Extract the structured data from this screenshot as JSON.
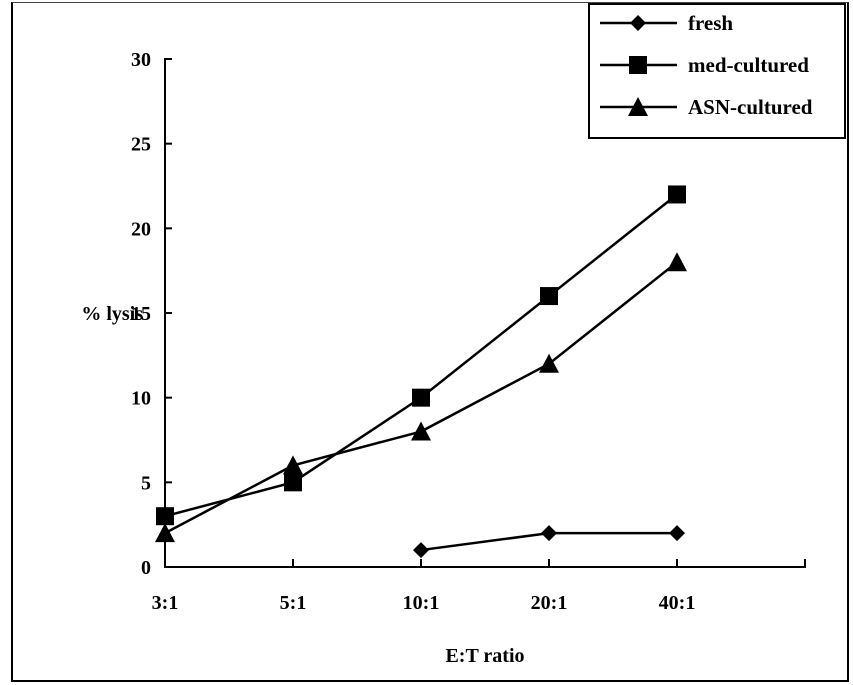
{
  "chart_data": {
    "type": "line",
    "categories": [
      "3:1",
      "5:1",
      "10:1",
      "20:1",
      "40:1"
    ],
    "series": [
      {
        "name": "fresh",
        "marker": "diamond",
        "values": [
          null,
          null,
          1,
          2,
          2
        ]
      },
      {
        "name": "med-cultured",
        "marker": "square",
        "values": [
          3,
          5,
          10,
          16,
          22
        ]
      },
      {
        "name": "ASN-cultured",
        "marker": "triangle",
        "values": [
          2,
          6,
          8,
          12,
          18
        ]
      }
    ],
    "title": "",
    "xlabel": "E:T ratio",
    "ylabel": "% lysis",
    "ylim": [
      0,
      30
    ],
    "yticks": [
      0,
      5,
      10,
      15,
      20,
      25,
      30
    ],
    "grid": false,
    "legend_position": "top-right",
    "colors": {
      "line": "#000000",
      "marker": "#000000",
      "background": "#ffffff"
    }
  }
}
